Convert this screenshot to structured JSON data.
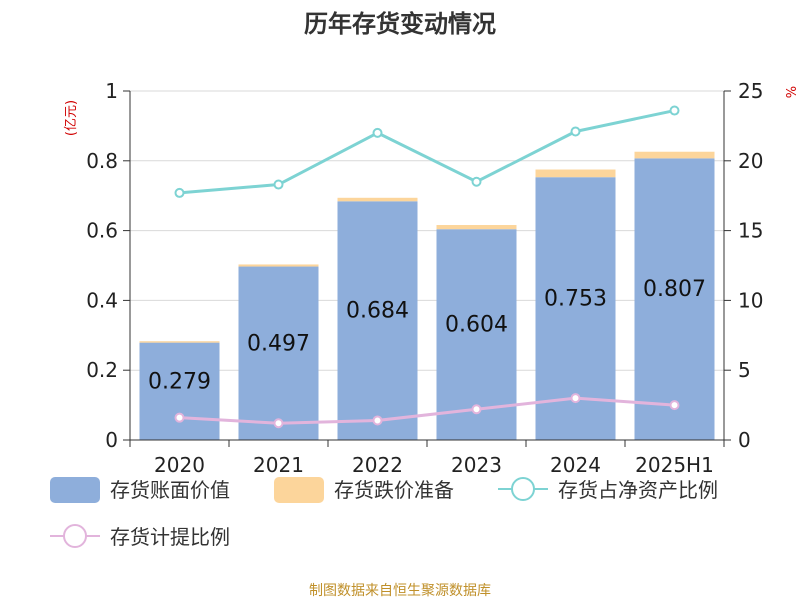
{
  "chart_data": {
    "type": "bar",
    "title": "历年存货变动情况",
    "unit_left": "(亿元)",
    "unit_right": "%",
    "categories": [
      "2020",
      "2021",
      "2022",
      "2023",
      "2024",
      "2025H1"
    ],
    "ylim_left": [
      0,
      1
    ],
    "yticks_left": [
      "0",
      "0.2",
      "0.4",
      "0.6",
      "0.8",
      "1"
    ],
    "ylim_right": [
      0,
      25
    ],
    "yticks_right": [
      "0",
      "5",
      "10",
      "15",
      "20",
      "25"
    ],
    "series": [
      {
        "name": "存货账面价值",
        "kind": "bar",
        "color": "#8eaedb",
        "values": [
          0.279,
          0.497,
          0.684,
          0.604,
          0.753,
          0.807
        ],
        "labels": [
          "0.279",
          "0.497",
          "0.684",
          "0.604",
          "0.753",
          "0.807"
        ]
      },
      {
        "name": "存货跌价准备",
        "kind": "bar-stack",
        "color": "#fcd59b",
        "values": [
          0.004,
          0.006,
          0.01,
          0.012,
          0.022,
          0.019
        ]
      },
      {
        "name": "存货占净资产比例",
        "kind": "line",
        "axis": "right",
        "color": "#7dd3d3",
        "values": [
          17.7,
          18.3,
          22.0,
          18.5,
          22.1,
          23.6
        ]
      },
      {
        "name": "存货计提比例",
        "kind": "line",
        "axis": "right",
        "color": "#e2b4dc",
        "values": [
          1.6,
          1.2,
          1.4,
          2.2,
          3.0,
          2.5
        ]
      }
    ],
    "grid": true,
    "legend_position": "bottom"
  },
  "source": "制图数据来自恒生聚源数据库"
}
